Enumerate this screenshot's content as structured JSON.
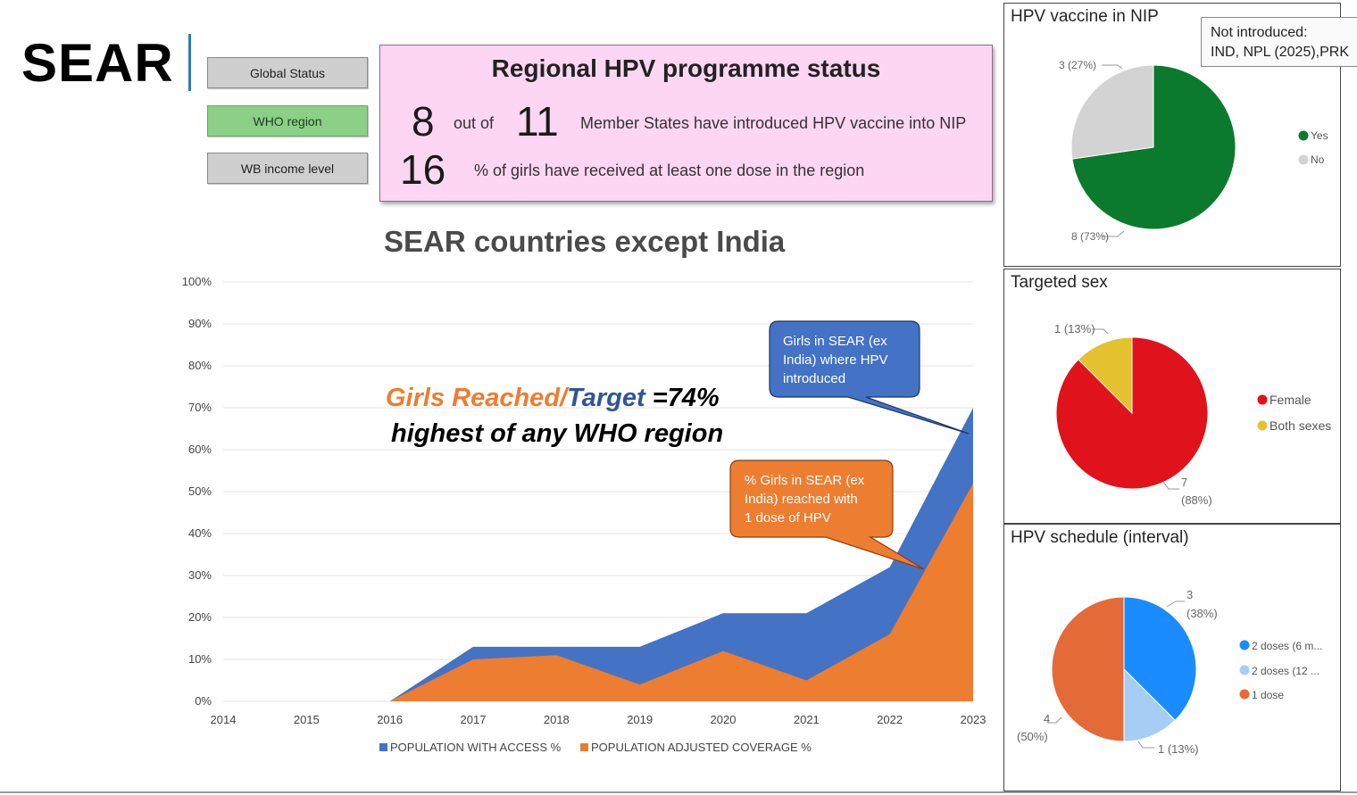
{
  "region_title": "SEAR",
  "nav": {
    "global_status": "Global Status",
    "who_region": "WHO region",
    "wb_income": "WB income level"
  },
  "status": {
    "title": "Regional HPV programme status",
    "introduced_count": "8",
    "out_of": "out of",
    "total_states": "11",
    "introduced_text": "Member States have introduced HPV vaccine into NIP",
    "coverage_pct": "16",
    "coverage_text": "% of girls have received at least one dose in the region"
  },
  "annotation": {
    "reached": "Girls Reached/",
    "target": "Target",
    "value": " =74%",
    "highest": "highest of any WHO region"
  },
  "callouts": {
    "access": [
      "Girls in SEAR (ex",
      "India) where HPV",
      "introduced"
    ],
    "coverage": [
      "% Girls in SEAR (ex",
      "India) reached with",
      "1 dose of HPV"
    ]
  },
  "colors": {
    "access": "#4472c4",
    "coverage": "#ed7d31",
    "yes": "#0b7a2c",
    "no": "#d3d3d3",
    "female": "#e0121b",
    "both": "#e3c12f",
    "dose2_6m": "#1a8cff",
    "dose2_12": "#a6cef5",
    "dose1": "#e46b37",
    "reached_text": "#ed7d31",
    "target_text": "#2f5597"
  },
  "chart_data": [
    {
      "type": "area",
      "title": "SEAR countries except India",
      "x": [
        2014,
        2015,
        2016,
        2017,
        2018,
        2019,
        2020,
        2021,
        2022,
        2023
      ],
      "series": [
        {
          "name": "POPULATION WITH ACCESS %",
          "values": [
            0,
            0,
            0,
            13,
            13,
            13,
            21,
            21,
            32,
            70
          ]
        },
        {
          "name": "POPULATION ADJUSTED COVERAGE  %",
          "values": [
            0,
            0,
            0,
            10,
            11,
            4,
            12,
            5,
            16,
            52
          ]
        }
      ],
      "ylim": [
        0,
        100
      ],
      "yticks": [
        "0%",
        "10%",
        "20%",
        "30%",
        "40%",
        "50%",
        "60%",
        "70%",
        "80%",
        "90%",
        "100%"
      ],
      "xticks": [
        "2014",
        "2015",
        "2016",
        "2017",
        "2018",
        "2019",
        "2020",
        "2021",
        "2022",
        "2023"
      ],
      "legend": [
        "POPULATION WITH ACCESS %",
        "POPULATION ADJUSTED COVERAGE  %"
      ]
    },
    {
      "type": "pie",
      "title": "HPV vaccine in NIP",
      "labels": [
        "Yes",
        "No"
      ],
      "values": [
        8,
        3
      ],
      "data_labels": [
        "8 (73%)",
        "3 (27%)"
      ],
      "tooltip": [
        "Not introduced:",
        "IND, NPL (2025),PRK"
      ]
    },
    {
      "type": "pie",
      "title": "Targeted sex",
      "labels": [
        "Female",
        "Both sexes"
      ],
      "values": [
        7,
        1
      ],
      "data_labels": [
        [
          "7",
          "(88%)"
        ],
        [
          "1 (13%)"
        ]
      ]
    },
    {
      "type": "pie",
      "title": "HPV schedule (interval)",
      "labels": [
        "2 doses (6 m...",
        "2 doses (12 ...",
        "1 dose"
      ],
      "values": [
        3,
        1,
        4
      ],
      "data_labels": [
        [
          "3",
          "(38%)"
        ],
        [
          "1 (13%)"
        ],
        [
          "4",
          "(50%)"
        ]
      ]
    }
  ]
}
